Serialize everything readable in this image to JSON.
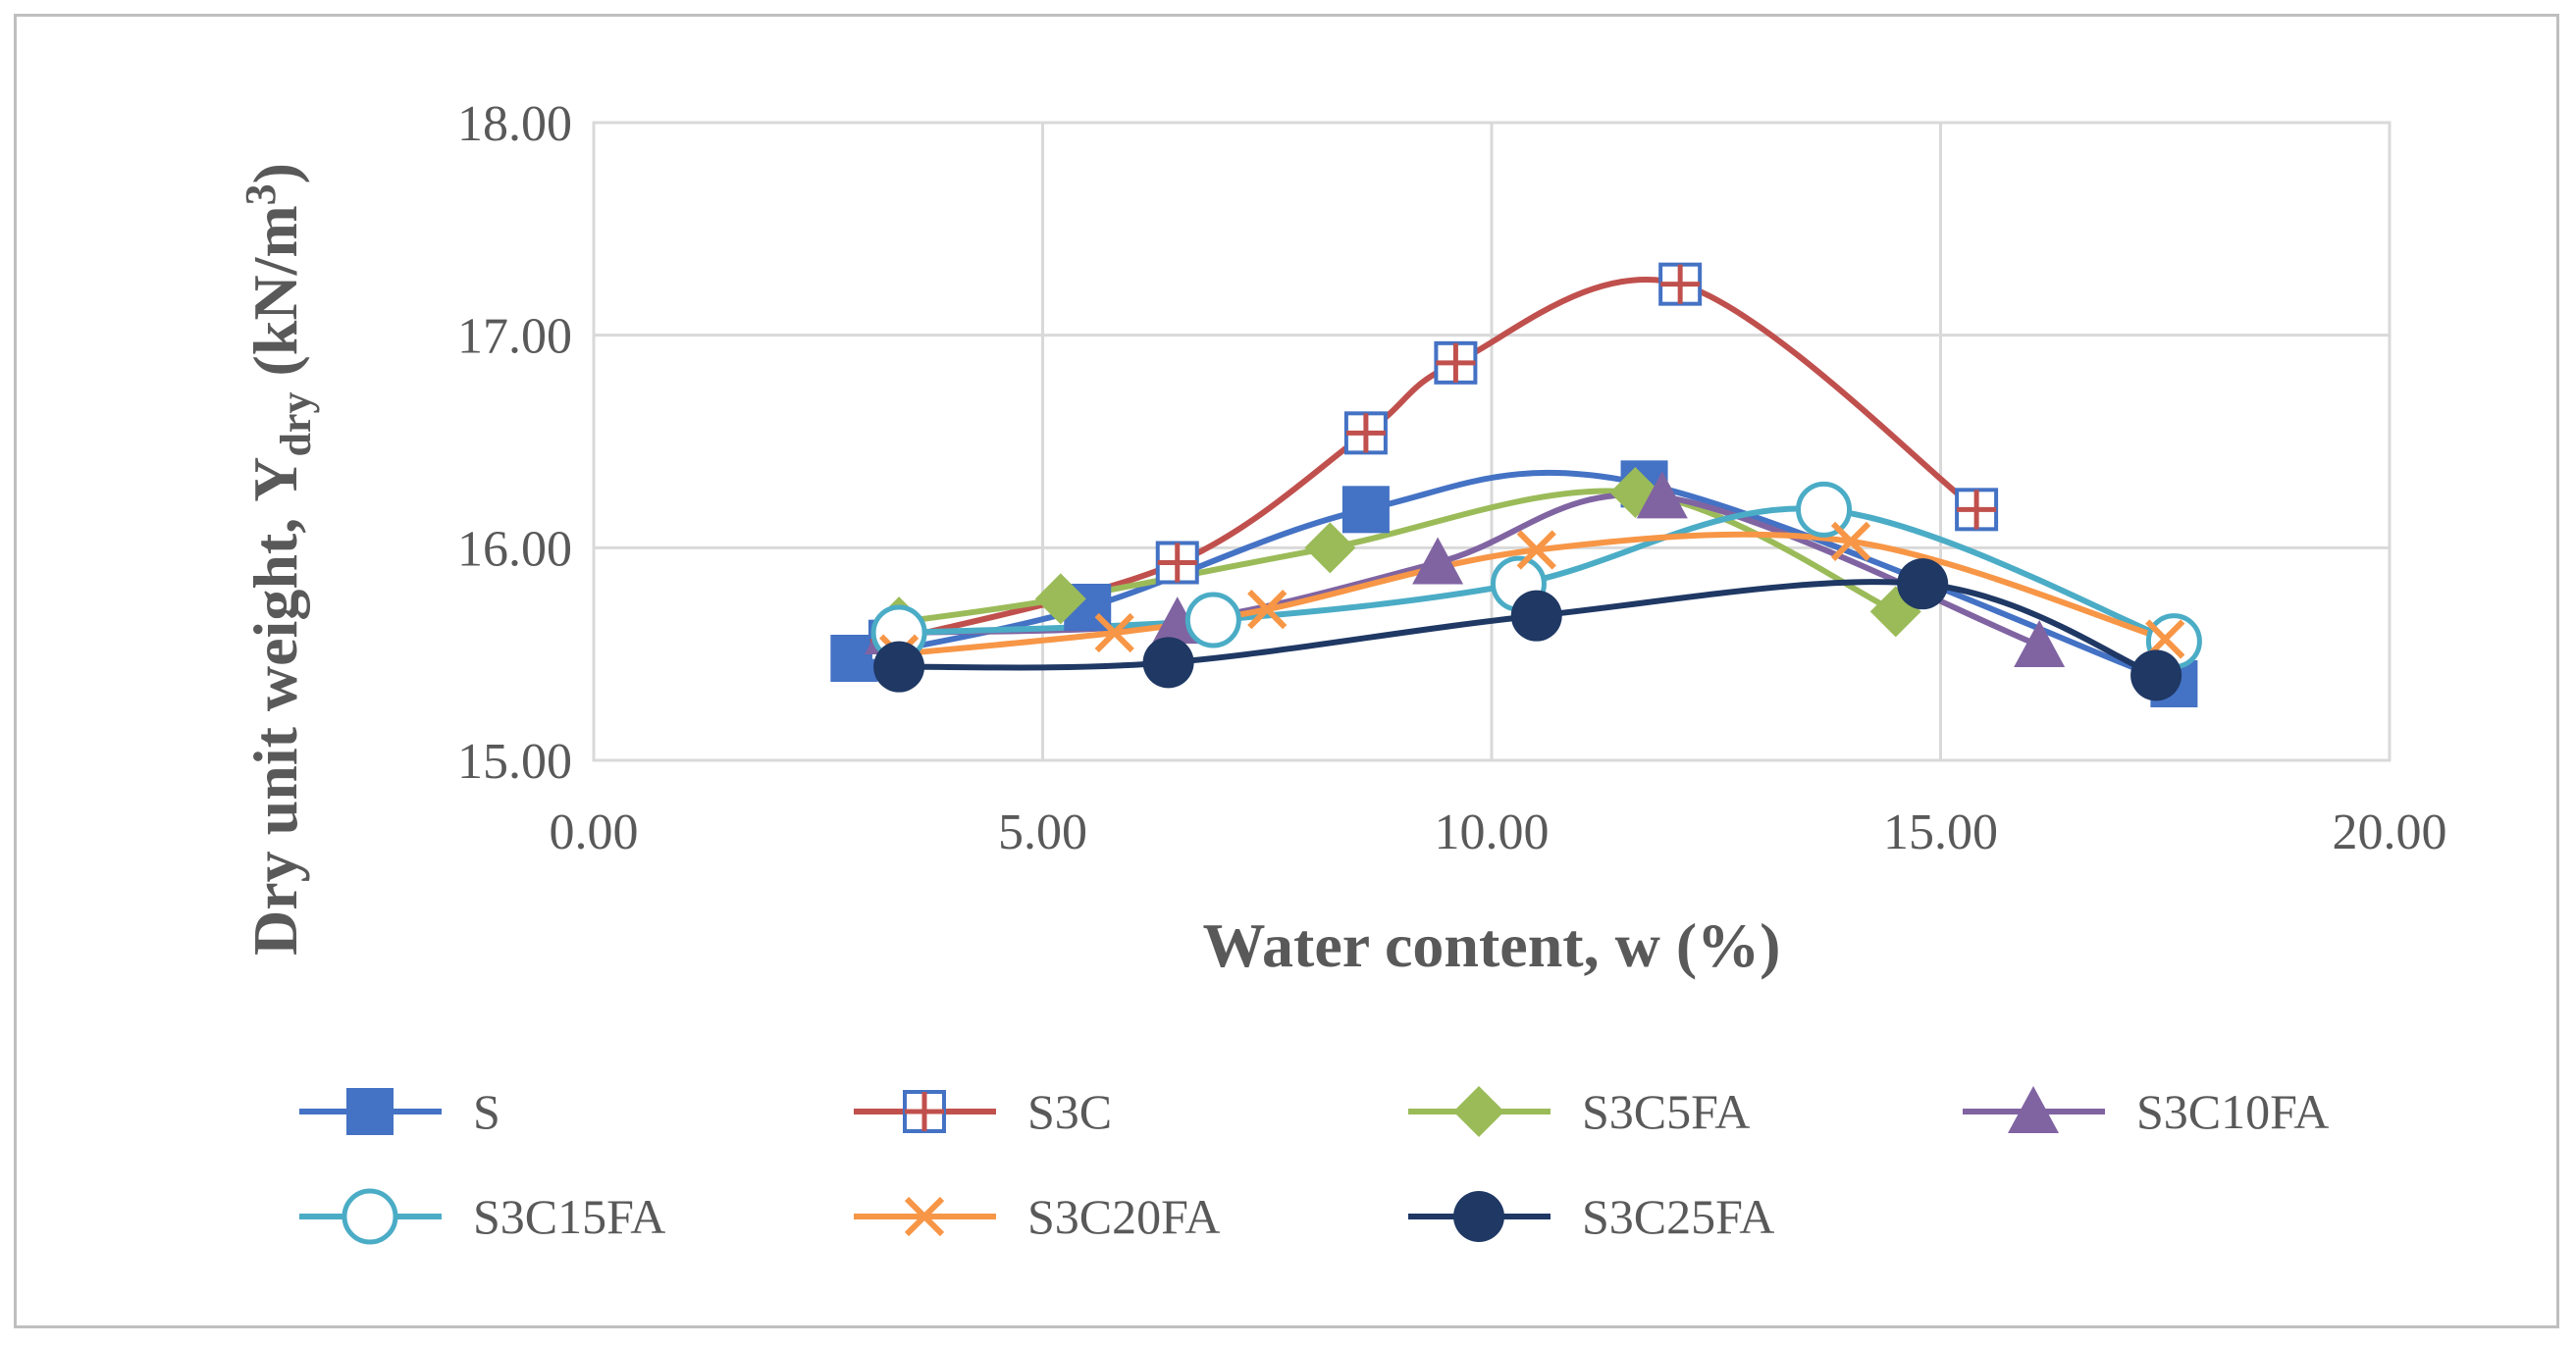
{
  "chart_data": {
    "type": "line",
    "smooth": true,
    "xlabel": "Water content, w (%)",
    "ylabel": {
      "prefix": "Dry unit weight, ",
      "symbol": "Υ",
      "subscript": "dry",
      "units_open": " (kN/m",
      "superscript": "3",
      "units_close": ")"
    },
    "xlim": [
      0,
      20
    ],
    "ylim": [
      15,
      18
    ],
    "xticks": [
      "0.00",
      "5.00",
      "10.00",
      "15.00",
      "20.00"
    ],
    "yticks": [
      "15.00",
      "16.00",
      "17.00",
      "18.00"
    ],
    "xtick_values": [
      0,
      5,
      10,
      15,
      20
    ],
    "ytick_values": [
      15,
      16,
      17,
      18
    ],
    "grid": true,
    "legend_position": "bottom",
    "series": [
      {
        "name": "S",
        "color": "#4472c4",
        "marker": "square",
        "x": [
          2.9,
          5.5,
          8.6,
          11.7,
          17.6
        ],
        "y": [
          15.48,
          15.72,
          16.18,
          16.3,
          15.36
        ]
      },
      {
        "name": "S3C",
        "color": "#c0504d",
        "marker": "square-plus",
        "x": [
          3.3,
          6.5,
          8.6,
          9.6,
          12.1,
          15.4
        ],
        "y": [
          15.56,
          15.93,
          16.54,
          16.87,
          17.24,
          16.18
        ]
      },
      {
        "name": "S3C5FA",
        "color": "#9bbb59",
        "marker": "diamond",
        "x": [
          3.4,
          5.2,
          8.2,
          11.6,
          14.5
        ],
        "y": [
          15.65,
          15.76,
          16.0,
          16.26,
          15.7
        ]
      },
      {
        "name": "S3C10FA",
        "color": "#8064a2",
        "marker": "triangle",
        "x": [
          3.3,
          6.5,
          9.4,
          11.9,
          16.1
        ],
        "y": [
          15.6,
          15.65,
          15.93,
          16.24,
          15.54
        ]
      },
      {
        "name": "S3C15FA",
        "color": "#4bacc6",
        "marker": "circle-open",
        "x": [
          3.4,
          6.9,
          10.3,
          13.7,
          17.6
        ],
        "y": [
          15.6,
          15.66,
          15.83,
          16.18,
          15.56
        ]
      },
      {
        "name": "S3C20FA",
        "color": "#f79646",
        "marker": "x",
        "x": [
          3.4,
          5.8,
          7.5,
          10.5,
          14.0,
          17.5
        ],
        "y": [
          15.5,
          15.6,
          15.71,
          15.99,
          16.03,
          15.57
        ]
      },
      {
        "name": "S3C25FA",
        "color": "#1f3864",
        "marker": "circle",
        "x": [
          3.4,
          6.4,
          10.5,
          14.8,
          17.4
        ],
        "y": [
          15.44,
          15.46,
          15.68,
          15.83,
          15.4
        ]
      }
    ]
  }
}
